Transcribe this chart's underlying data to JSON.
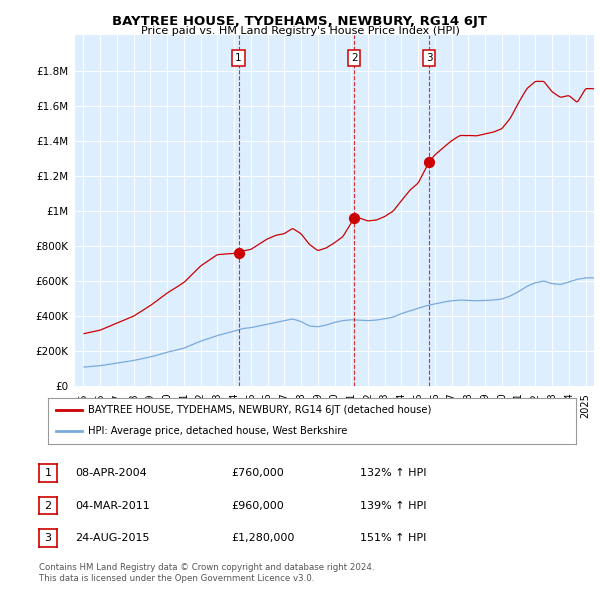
{
  "title": "BAYTREE HOUSE, TYDEHAMS, NEWBURY, RG14 6JT",
  "subtitle": "Price paid vs. HM Land Registry's House Price Index (HPI)",
  "legend_house": "BAYTREE HOUSE, TYDEHAMS, NEWBURY, RG14 6JT (detached house)",
  "legend_hpi": "HPI: Average price, detached house, West Berkshire",
  "footer1": "Contains HM Land Registry data © Crown copyright and database right 2024.",
  "footer2": "This data is licensed under the Open Government Licence v3.0.",
  "sales": [
    {
      "label": "1",
      "date": "08-APR-2004",
      "price": "£760,000",
      "x": 2004.27,
      "price_val": 760000,
      "hpi_pct": "132% ↑ HPI"
    },
    {
      "label": "2",
      "date": "04-MAR-2011",
      "price": "£960,000",
      "x": 2011.17,
      "price_val": 960000,
      "hpi_pct": "139% ↑ HPI"
    },
    {
      "label": "3",
      "date": "24-AUG-2015",
      "price": "£1,280,000",
      "x": 2015.65,
      "price_val": 1280000,
      "hpi_pct": "151% ↑ HPI"
    }
  ],
  "house_color": "#cc0000",
  "hpi_color": "#7aaadd",
  "background_color": "#ddeeff",
  "ylim": [
    0,
    2000000
  ],
  "yticks": [
    0,
    200000,
    400000,
    600000,
    800000,
    1000000,
    1200000,
    1400000,
    1600000,
    1800000
  ],
  "xlim_start": 1994.5,
  "xlim_end": 2025.5
}
